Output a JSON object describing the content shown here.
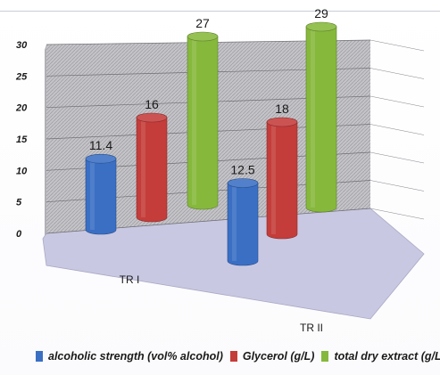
{
  "chart_data": {
    "type": "bar",
    "categories": [
      "TR I",
      "TR II"
    ],
    "series": [
      {
        "name": "alcoholic strength (vol% alcohol)",
        "values": [
          11.4,
          12.5
        ],
        "color": "#3a6fc4"
      },
      {
        "name": "Glycerol (g/L)",
        "values": [
          16,
          18
        ],
        "color": "#c43d3a"
      },
      {
        "name": "total dry extract (g/L)",
        "values": [
          27,
          29
        ],
        "color": "#86b83c"
      }
    ],
    "value_labels": [
      [
        "11.4",
        "12.5"
      ],
      [
        "16",
        "18"
      ],
      [
        "27",
        "29"
      ]
    ],
    "ylim": [
      0,
      30
    ],
    "yticks": [
      "0",
      "5",
      "10",
      "15",
      "20",
      "25",
      "30"
    ],
    "grid": true,
    "legend_position": "bottom",
    "style": "3d-cylinder"
  }
}
